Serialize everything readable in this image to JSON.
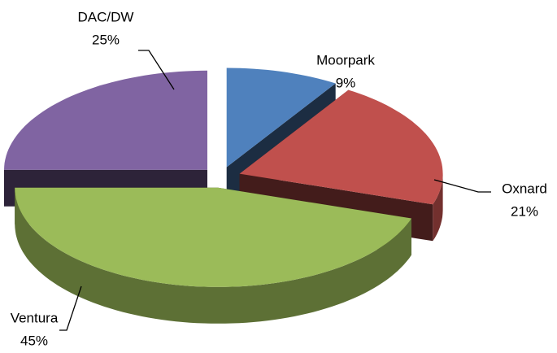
{
  "chart_data": {
    "type": "pie3d",
    "categories": [
      "Moorpark",
      "Oxnard",
      "Ventura",
      "DAC/DW"
    ],
    "values": [
      9,
      21,
      45,
      25
    ],
    "value_labels": [
      "9%",
      "21%",
      "45%",
      "25%"
    ],
    "colors": [
      "#4f81bd",
      "#c0504d",
      "#9bbb59",
      "#8064a2"
    ]
  }
}
